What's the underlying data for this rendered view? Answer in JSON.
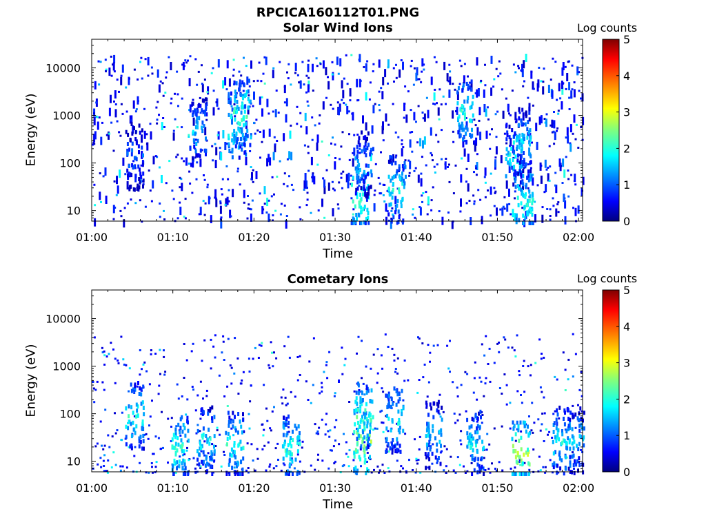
{
  "page": {
    "main_title": "RPCICA160112T01.PNG"
  },
  "chart_data": [
    {
      "type": "heatmap",
      "title": "Solar Wind Ions",
      "xlabel": "Time",
      "ylabel": "Energy (eV)",
      "x_ticks": [
        "01:00",
        "01:10",
        "01:20",
        "01:30",
        "01:40",
        "01:50",
        "02:00"
      ],
      "y_ticks": [
        "10",
        "100",
        "1000",
        "10000"
      ],
      "y_scale": "log",
      "ylim": [
        6,
        40000
      ],
      "xlim_minutes": [
        0,
        60.5
      ],
      "colorbar": {
        "label": "Log counts",
        "min": 0,
        "max": 5,
        "ticks": [
          "0",
          "1",
          "2",
          "3",
          "4",
          "5"
        ],
        "colormap": "jet"
      },
      "hotspots": [
        {
          "t": 5.2,
          "e": 150,
          "value": 1.5
        },
        {
          "t": 13.0,
          "e": 500,
          "value": 2.0
        },
        {
          "t": 17.8,
          "e": 700,
          "value": 2.4
        },
        {
          "t": 18.5,
          "e": 1200,
          "value": 2.6
        },
        {
          "t": 33.0,
          "e": 20,
          "value": 2.6
        },
        {
          "t": 33.5,
          "e": 100,
          "value": 1.8
        },
        {
          "t": 37.5,
          "e": 30,
          "value": 2.2
        },
        {
          "t": 46.0,
          "e": 1300,
          "value": 2.3
        },
        {
          "t": 52.0,
          "e": 150,
          "value": 2.2
        },
        {
          "t": 53.0,
          "e": 300,
          "value": 2.0
        },
        {
          "t": 53.2,
          "e": 15,
          "value": 2.4
        }
      ]
    },
    {
      "type": "heatmap",
      "title": "Cometary Ions",
      "xlabel": "Time",
      "ylabel": "Energy (eV)",
      "x_ticks": [
        "01:00",
        "01:10",
        "01:20",
        "01:30",
        "01:40",
        "01:50",
        "02:00"
      ],
      "y_ticks": [
        "10",
        "100",
        "1000",
        "10000"
      ],
      "y_scale": "log",
      "ylim": [
        6,
        40000
      ],
      "xlim_minutes": [
        0,
        60.5
      ],
      "colorbar": {
        "label": "Log counts",
        "min": 0,
        "max": 5,
        "ticks": [
          "0",
          "1",
          "2",
          "3",
          "4",
          "5"
        ],
        "colormap": "jet"
      },
      "hotspots": [
        {
          "t": 5.2,
          "e": 100,
          "value": 2.3
        },
        {
          "t": 10.8,
          "e": 20,
          "value": 2.5
        },
        {
          "t": 14.0,
          "e": 30,
          "value": 2.2
        },
        {
          "t": 17.5,
          "e": 25,
          "value": 2.3
        },
        {
          "t": 24.5,
          "e": 20,
          "value": 2.4
        },
        {
          "t": 33.3,
          "e": 30,
          "value": 3.0
        },
        {
          "t": 33.5,
          "e": 100,
          "value": 2.5
        },
        {
          "t": 37.2,
          "e": 80,
          "value": 2.3
        },
        {
          "t": 42.0,
          "e": 40,
          "value": 2.0
        },
        {
          "t": 47.2,
          "e": 25,
          "value": 2.2
        },
        {
          "t": 52.8,
          "e": 15,
          "value": 3.0
        },
        {
          "t": 57.8,
          "e": 30,
          "value": 2.3
        },
        {
          "t": 59.5,
          "e": 30,
          "value": 2.0
        }
      ]
    }
  ]
}
